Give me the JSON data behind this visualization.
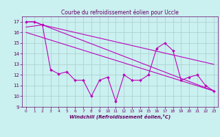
{
  "title": "Courbe du refroidissement éolien pour Uccle",
  "xlabel": "Windchill (Refroidissement éolien,°C)",
  "bg_color": "#caf0f0",
  "grid_color": "#aacccc",
  "line_color": "#bb00bb",
  "xlim": [
    -0.5,
    23.5
  ],
  "ylim": [
    9,
    17.5
  ],
  "yticks": [
    9,
    10,
    11,
    12,
    13,
    14,
    15,
    16,
    17
  ],
  "xticks": [
    0,
    1,
    2,
    3,
    4,
    5,
    6,
    7,
    8,
    9,
    10,
    11,
    12,
    13,
    14,
    15,
    16,
    17,
    18,
    19,
    20,
    21,
    22,
    23
  ],
  "line1_x": [
    0,
    1,
    2,
    3,
    4,
    5,
    6,
    7,
    8,
    9,
    10,
    11,
    12,
    13,
    14,
    15,
    16,
    17,
    18,
    19,
    20,
    21,
    22,
    23
  ],
  "line1_y": [
    17.0,
    17.0,
    16.7,
    12.5,
    12.1,
    12.3,
    11.5,
    11.5,
    10.0,
    11.5,
    11.8,
    9.5,
    12.0,
    11.5,
    11.5,
    12.0,
    14.5,
    15.0,
    14.3,
    11.5,
    11.8,
    12.0,
    11.0,
    10.5
  ],
  "line2_x": [
    0,
    1,
    23
  ],
  "line2_y": [
    17.0,
    17.0,
    10.5
  ],
  "line3_x": [
    0,
    2,
    23
  ],
  "line3_y": [
    16.5,
    16.7,
    13.0
  ],
  "line4_x": [
    0,
    23
  ],
  "line4_y": [
    16.0,
    10.5
  ]
}
